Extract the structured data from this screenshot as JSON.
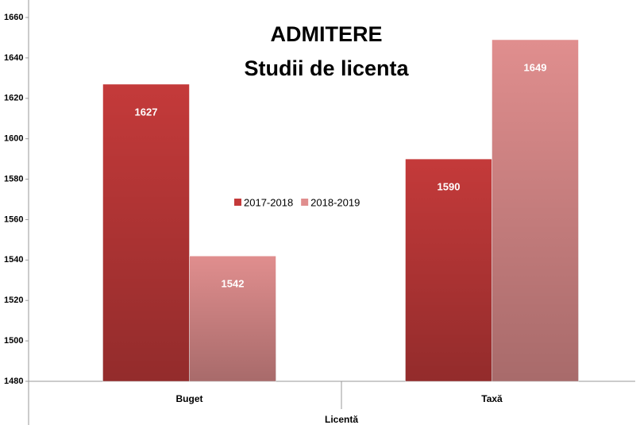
{
  "chart_data": {
    "type": "bar",
    "title": "ADMITERE",
    "subtitle": "Studii de licenta",
    "x_label": "Licentă",
    "categories": [
      "Buget",
      "Taxă"
    ],
    "series": [
      {
        "name": "2017-2018",
        "color": "#c43a3a",
        "values": [
          1627,
          1590
        ]
      },
      {
        "name": "2018-2019",
        "color": "#e08e8e",
        "values": [
          1542,
          1649
        ]
      }
    ],
    "ylim": [
      1480,
      1660
    ],
    "yticks": [
      1480,
      1500,
      1520,
      1540,
      1560,
      1580,
      1600,
      1620,
      1640,
      1660
    ],
    "grid": false,
    "legend": "center"
  }
}
